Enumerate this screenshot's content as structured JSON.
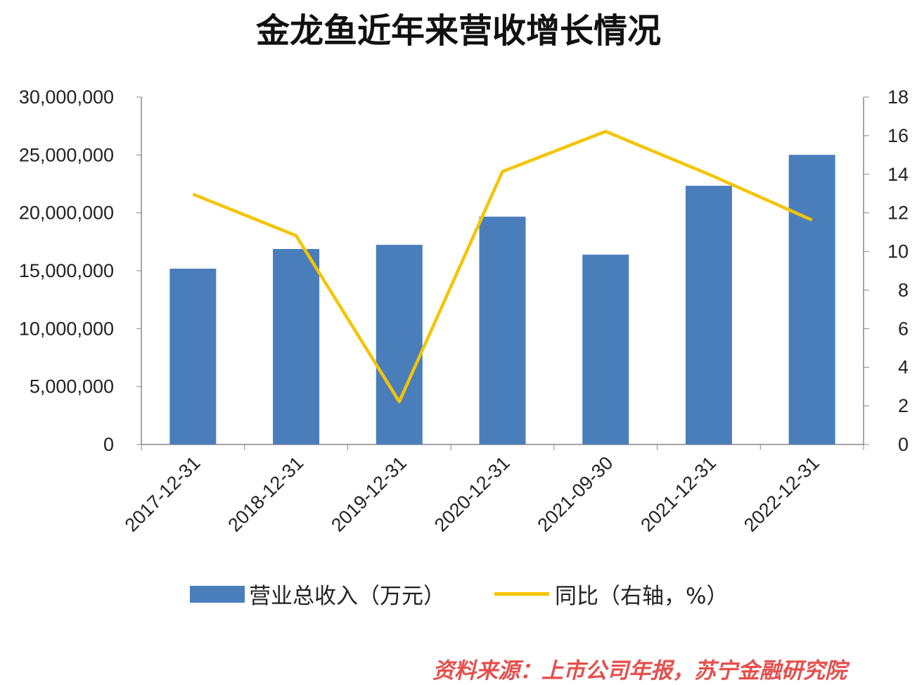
{
  "chart_data": {
    "type": "bar+line",
    "title": "金龙鱼近年来营收增长情况",
    "categories": [
      "2017-12-31",
      "2018-12-31",
      "2019-12-31",
      "2020-12-31",
      "2021-09-30",
      "2021-12-31",
      "2022-12-31"
    ],
    "series": [
      {
        "name": "营业总收入（万元）",
        "type": "bar",
        "axis": "left",
        "color": "#4a7ebb",
        "values": [
          15180000,
          16880000,
          17240000,
          19670000,
          16390000,
          22340000,
          25010000
        ]
      },
      {
        "name": "同比（右轴，%）",
        "type": "line",
        "axis": "right",
        "color": "#f5c400",
        "values": [
          12.97,
          10.82,
          2.22,
          14.14,
          16.22,
          14.0,
          11.63
        ]
      }
    ],
    "ylim": [
      0,
      30000000
    ],
    "y2lim": [
      0,
      18
    ],
    "yticks": [
      "0",
      "5,000,000",
      "10,000,000",
      "15,000,000",
      "20,000,000",
      "25,000,000",
      "30,000,000"
    ],
    "y2ticks": [
      "0",
      "2",
      "4",
      "6",
      "8",
      "10",
      "12",
      "14",
      "16",
      "18"
    ],
    "legend": "bottom",
    "grid": false
  },
  "source": "资料来源：上市公司年报，苏宁金融研究院"
}
